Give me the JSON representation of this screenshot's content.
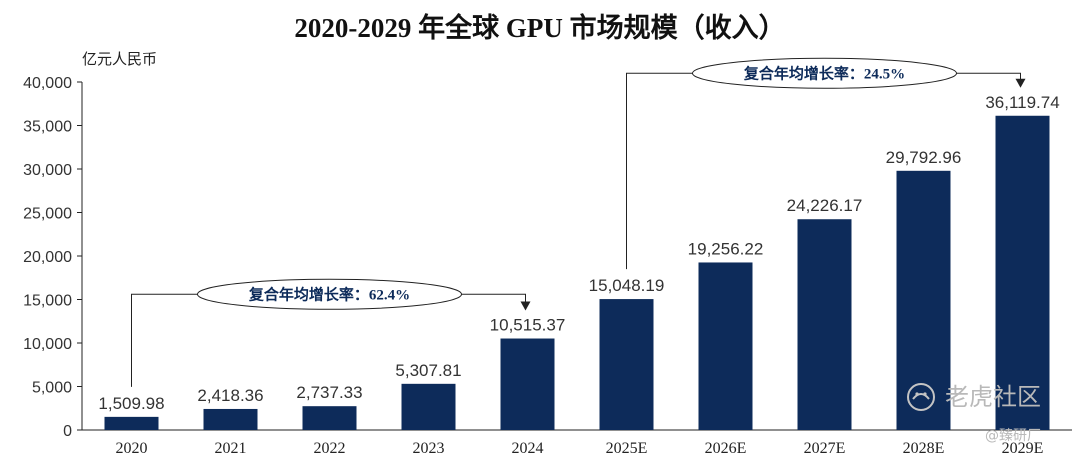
{
  "chart_data": {
    "type": "bar",
    "title": "2020-2029 年全球 GPU 市场规模（收入）",
    "ylabel": "亿元人民币",
    "xlabel": "",
    "categories": [
      "2020",
      "2021",
      "2022",
      "2023",
      "2024",
      "2025E",
      "2026E",
      "2027E",
      "2028E",
      "2029E"
    ],
    "values": [
      1509.98,
      2418.36,
      2737.33,
      5307.81,
      10515.37,
      15048.19,
      19256.22,
      24226.17,
      29792.96,
      36119.74
    ],
    "value_labels": [
      "1,509.98",
      "2,418.36",
      "2,737.33",
      "5,307.81",
      "10,515.37",
      "15,048.19",
      "19,256.22",
      "24,226.17",
      "29,792.96",
      "36,119.74"
    ],
    "ylim": [
      0,
      40000
    ],
    "yticks": [
      0,
      5000,
      10000,
      15000,
      20000,
      25000,
      30000,
      35000,
      40000
    ],
    "ytick_labels": [
      "0",
      "5,000",
      "10,000",
      "15,000",
      "20,000",
      "25,000",
      "30,000",
      "35,000",
      "40,000"
    ],
    "bar_color": "#0d2b5a",
    "grid": false,
    "annotations": [
      {
        "text": "复合年均增长率：62.4%",
        "from": "2020",
        "to": "2024"
      },
      {
        "text": "复合年均增长率：24.5%",
        "from": "2025E",
        "to": "2029E"
      }
    ]
  },
  "watermark": {
    "main": "老虎社区",
    "sub": "@臻研厂",
    "icon": "tiger-logo-icon"
  }
}
